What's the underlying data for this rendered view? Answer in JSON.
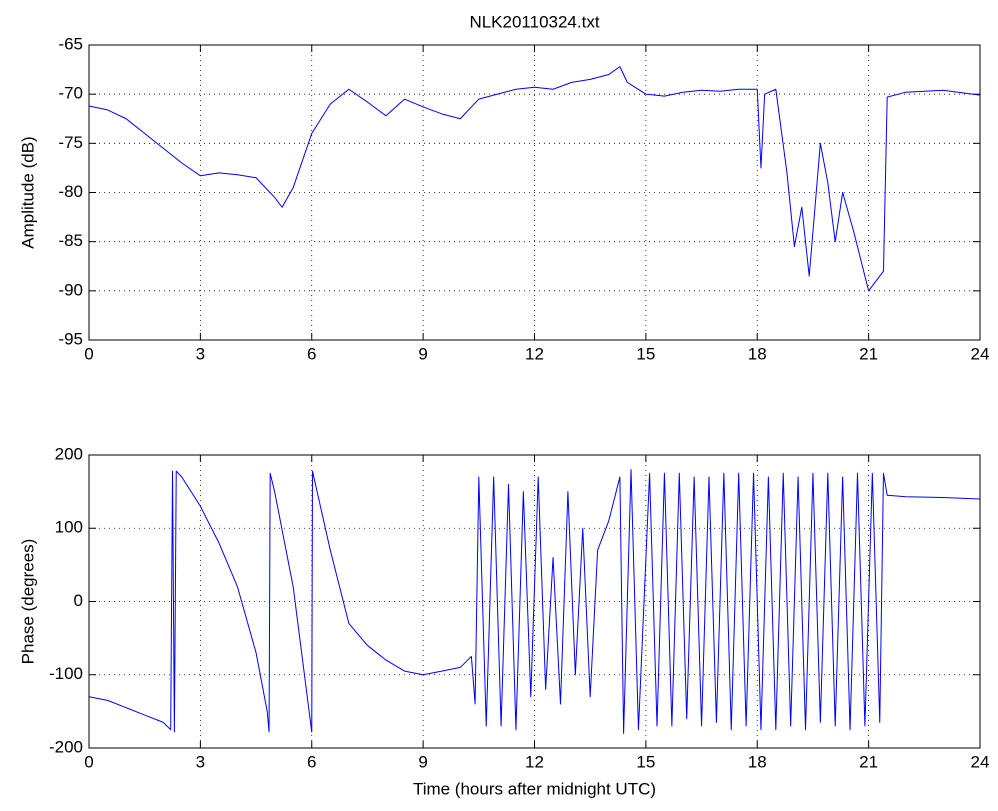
{
  "chart_data": [
    {
      "type": "line",
      "title": "NLK20110324.txt",
      "ylabel": "Amplitude (dB)",
      "color": "#0000ff",
      "grid": true,
      "xlim": [
        0,
        24
      ],
      "xticks": [
        0,
        3,
        6,
        9,
        12,
        15,
        18,
        21,
        24
      ],
      "ylim": [
        -95,
        -65
      ],
      "yticks": [
        -95,
        -90,
        -85,
        -80,
        -75,
        -70,
        -65
      ],
      "x": [
        0,
        0.5,
        1,
        1.5,
        2,
        2.5,
        3,
        3.5,
        4,
        4.5,
        5,
        5.2,
        5.5,
        6,
        6.5,
        7,
        7.5,
        8,
        8.5,
        9,
        9.5,
        10,
        10.5,
        11,
        11.5,
        12,
        12.5,
        13,
        13.5,
        14,
        14.3,
        14.5,
        15,
        15.5,
        16,
        16.5,
        17,
        17.5,
        18,
        18.1,
        18.2,
        18.5,
        18.8,
        19,
        19.2,
        19.4,
        19.7,
        19.9,
        20.1,
        20.3,
        20.6,
        20.9,
        21,
        21.4,
        21.5,
        22,
        23,
        24
      ],
      "values": [
        -71.2,
        -71.6,
        -72.5,
        -74,
        -75.5,
        -77,
        -78.3,
        -78,
        -78.2,
        -78.5,
        -80.5,
        -81.5,
        -79.5,
        -74,
        -71,
        -69.5,
        -70.8,
        -72.2,
        -70.5,
        -71.3,
        -72,
        -72.5,
        -70.5,
        -70,
        -69.5,
        -69.3,
        -69.5,
        -68.8,
        -68.5,
        -68,
        -67.2,
        -68.8,
        -70,
        -70.2,
        -69.8,
        -69.6,
        -69.7,
        -69.5,
        -69.5,
        -77.5,
        -70,
        -69.5,
        -78,
        -85.5,
        -81.5,
        -88.5,
        -75,
        -79,
        -85,
        -80,
        -84,
        -88.5,
        -90,
        -88,
        -70.3,
        -69.8,
        -69.6,
        -70.1
      ]
    },
    {
      "type": "line",
      "xlabel": "Time (hours after midnight UTC)",
      "ylabel": "Phase (degrees)",
      "color": "#0000ff",
      "grid": true,
      "xlim": [
        0,
        24
      ],
      "xticks": [
        0,
        3,
        6,
        9,
        12,
        15,
        18,
        21,
        24
      ],
      "ylim": [
        -200,
        200
      ],
      "yticks": [
        -200,
        -100,
        0,
        100,
        200
      ],
      "x": [
        0,
        0.5,
        1,
        1.5,
        2,
        2.2,
        2.25,
        2.3,
        2.35,
        2.5,
        3,
        3.5,
        4,
        4.5,
        4.8,
        4.85,
        4.88,
        5,
        5.5,
        6,
        6.02,
        6.5,
        7,
        7.5,
        8,
        8.5,
        9,
        9.5,
        10,
        10.3,
        10.4,
        10.5,
        10.7,
        10.9,
        11.1,
        11.3,
        11.5,
        11.7,
        11.9,
        12.1,
        12.3,
        12.5,
        12.7,
        12.9,
        13.1,
        13.3,
        13.5,
        13.7,
        14,
        14.3,
        14.4,
        14.6,
        14.8,
        15.1,
        15.3,
        15.5,
        15.7,
        15.9,
        16.1,
        16.3,
        16.5,
        16.7,
        16.9,
        17.1,
        17.3,
        17.5,
        17.7,
        17.9,
        18.1,
        18.3,
        18.5,
        18.7,
        18.9,
        19.1,
        19.3,
        19.5,
        19.7,
        19.9,
        20.1,
        20.3,
        20.5,
        20.7,
        20.9,
        21.1,
        21.3,
        21.4,
        21.5,
        22,
        23,
        24
      ],
      "values": [
        -130,
        -135,
        -145,
        -155,
        -165,
        -175,
        178,
        -178,
        178,
        170,
        130,
        80,
        20,
        -70,
        -150,
        -178,
        175,
        150,
        20,
        -178,
        178,
        70,
        -30,
        -60,
        -80,
        -95,
        -100,
        -95,
        -90,
        -75,
        -140,
        170,
        -170,
        170,
        -170,
        160,
        -175,
        150,
        -130,
        170,
        -120,
        60,
        -140,
        150,
        -100,
        100,
        -130,
        70,
        110,
        170,
        -180,
        180,
        -175,
        175,
        -170,
        175,
        -170,
        175,
        -160,
        170,
        -170,
        170,
        -165,
        175,
        -175,
        175,
        -170,
        175,
        -175,
        170,
        -175,
        175,
        -170,
        170,
        -175,
        175,
        -165,
        175,
        -170,
        170,
        -175,
        175,
        -170,
        175,
        -165,
        175,
        145,
        143,
        142,
        140
      ]
    }
  ]
}
